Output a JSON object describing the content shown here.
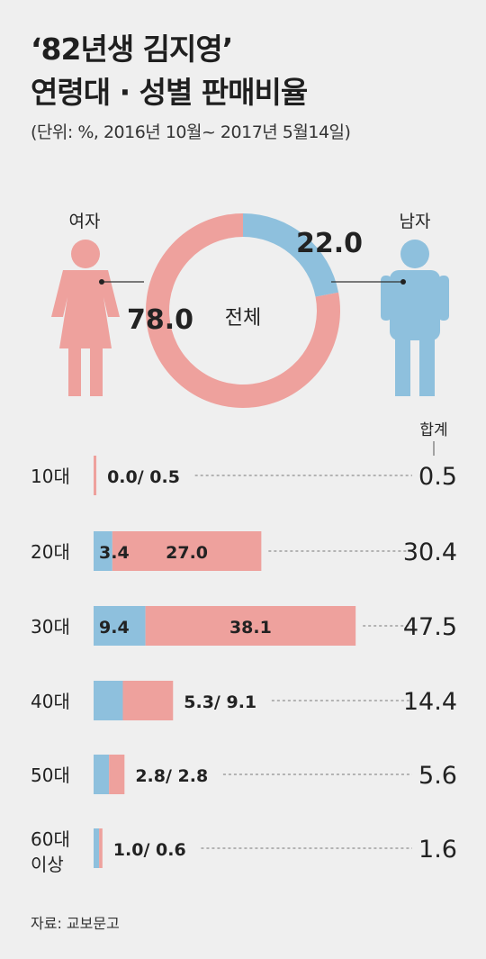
{
  "header": {
    "title_line1": "‘82년생 김지영’",
    "title_line2": "연령대 · 성별 판매비율",
    "subtitle": "(단위: %, 2016년 10월~ 2017년 5월14일)"
  },
  "colors": {
    "female": "#eea19d",
    "male": "#8ec0dd",
    "background": "#efefef"
  },
  "icons": [
    "female-figure-icon",
    "male-figure-icon"
  ],
  "chart_data": [
    {
      "type": "pie",
      "center_label": "전체",
      "slices": [
        {
          "name": "여자",
          "value": 78.0,
          "label": "78.0"
        },
        {
          "name": "남자",
          "value": 22.0,
          "label": "22.0"
        }
      ]
    },
    {
      "type": "bar",
      "stacked": true,
      "orientation": "horizontal",
      "total_header": "합계",
      "categories": [
        "10대",
        "20대",
        "30대",
        "40대",
        "50대",
        "60대 이상"
      ],
      "category_lines": [
        [
          "10대"
        ],
        [
          "20대"
        ],
        [
          "30대"
        ],
        [
          "40대"
        ],
        [
          "50대"
        ],
        [
          "60대",
          "이상"
        ]
      ],
      "series": [
        {
          "name": "남자",
          "values": [
            0.0,
            3.4,
            9.4,
            5.3,
            2.8,
            1.0
          ]
        },
        {
          "name": "여자",
          "values": [
            0.5,
            27.0,
            38.1,
            9.1,
            2.8,
            0.6
          ]
        }
      ],
      "labels_inside": [
        false,
        true,
        true,
        false,
        false,
        false
      ],
      "value_labels": [
        [
          "0.0",
          "0.5"
        ],
        [
          "3.4",
          "27.0"
        ],
        [
          "9.4",
          "38.1"
        ],
        [
          "5.3",
          "9.1"
        ],
        [
          "2.8",
          "2.8"
        ],
        [
          "1.0",
          "0.6"
        ]
      ],
      "total_labels": [
        "0.5",
        "30.4",
        "47.5",
        "14.4",
        "5.6",
        "1.6"
      ],
      "totals": [
        0.5,
        30.4,
        47.5,
        14.4,
        5.6,
        1.6
      ]
    }
  ],
  "footer": {
    "source": "자료: 교보문고"
  }
}
